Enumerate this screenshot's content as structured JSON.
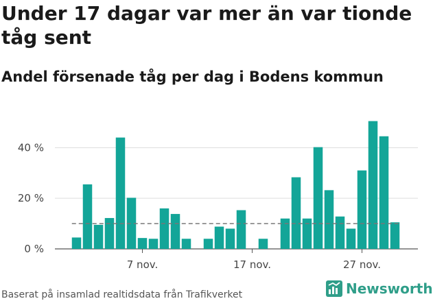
{
  "chart_data": {
    "type": "bar",
    "title": "Under 17 dagar var mer än var tionde tåg sent",
    "subtitle": "Andel försenade tåg per dag i Bodens kommun",
    "xlabel": "",
    "ylabel": "",
    "x_unit": "day of month (november)",
    "x": [
      1,
      2,
      3,
      4,
      5,
      6,
      7,
      8,
      9,
      10,
      11,
      12,
      13,
      14,
      15,
      16,
      17,
      18,
      19,
      20,
      21,
      22,
      23,
      24,
      25,
      26,
      27,
      28,
      29,
      30
    ],
    "values": [
      4.5,
      25.5,
      9.5,
      12.2,
      44,
      20.2,
      4.3,
      4,
      16,
      13.8,
      4,
      null,
      4,
      8.8,
      8,
      15.3,
      null,
      4,
      null,
      12,
      28.3,
      12,
      40.2,
      23.2,
      12.8,
      8,
      31,
      50.5,
      44.5,
      10.5
    ],
    "ylim": [
      0,
      55
    ],
    "yticks": [
      0,
      20,
      40
    ],
    "ytick_labels": [
      "0 %",
      "20 %",
      "40 %"
    ],
    "xticks": [
      7,
      17,
      27
    ],
    "xtick_labels": [
      "7 nov.",
      "17 nov.",
      "27 nov."
    ],
    "reference_line": {
      "value": 10,
      "style": "dashed"
    },
    "grid": true,
    "bar_color": "#13a598",
    "reference_color": "#777777",
    "legend": "none"
  },
  "footer": {
    "source": "Baserat på insamlad realtidsdata från Trafikverket"
  },
  "brand": {
    "name": "Newsworthy",
    "color": "#2f9e89"
  }
}
